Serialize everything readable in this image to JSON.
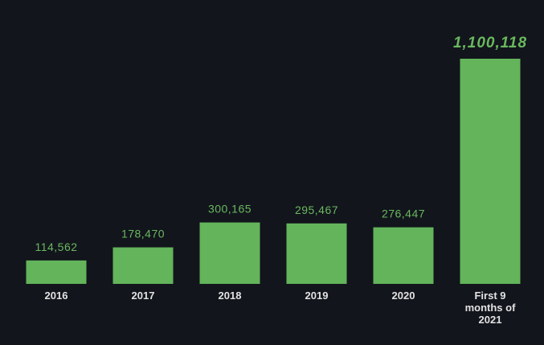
{
  "chart_data": {
    "type": "bar",
    "categories": [
      "2016",
      "2017",
      "2018",
      "2019",
      "2020",
      "First 9 months of 2021"
    ],
    "values": [
      114562,
      178470,
      300165,
      295467,
      276447,
      1100118
    ],
    "value_labels": [
      "114,562",
      "178,470",
      "300,165",
      "295,467",
      "276,447",
      "1,100,118"
    ],
    "color": "#63b45a"
  }
}
